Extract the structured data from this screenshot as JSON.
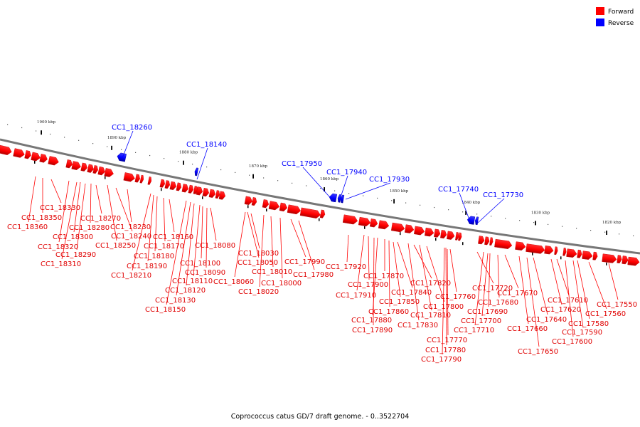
{
  "legend": {
    "forward_label": "Forward",
    "reverse_label": "Reverse",
    "forward_color": "#ff0000",
    "reverse_color": "#0000ff"
  },
  "caption": "Coprococcus catus GD/7 draft genome. - 0..3522704",
  "colors": {
    "backbone": "#808080",
    "forward": "#ff0000",
    "reverse": "#0000ff",
    "tick": "#000000"
  },
  "ticks": [
    "1900 kbp",
    "1890 kbp",
    "1880 kbp",
    "1870 kbp",
    "1860 kbp",
    "1850 kbp",
    "1840 kbp",
    "1830 kbp",
    "1820 kbp"
  ],
  "reverse_genes": [
    "CC1_18260",
    "CC1_18140",
    "CC1_17950",
    "CC1_17940",
    "CC1_17930",
    "CC1_17740",
    "CC1_17730"
  ],
  "forward_genes": [
    "CC1_18360",
    "CC1_18350",
    "CC1_18330",
    "CC1_18320",
    "CC1_18310",
    "CC1_18300",
    "CC1_18290",
    "CC1_18280",
    "CC1_18270",
    "CC1_18250",
    "CC1_18240",
    "CC1_18230",
    "CC1_18210",
    "CC1_18190",
    "CC1_18180",
    "CC1_18170",
    "CC1_18160",
    "CC1_18150",
    "CC1_18130",
    "CC1_18120",
    "CC1_18110",
    "CC1_18100",
    "CC1_18090",
    "CC1_18080",
    "CC1_18060",
    "CC1_18050",
    "CC1_18030",
    "CC1_18020",
    "CC1_18010",
    "CC1_18000",
    "CC1_17990",
    "CC1_17980",
    "CC1_17920",
    "CC1_17910",
    "CC1_17900",
    "CC1_17890",
    "CC1_17880",
    "CC1_17870",
    "CC1_17860",
    "CC1_17850",
    "CC1_17840",
    "CC1_17830",
    "CC1_17820",
    "CC1_17810",
    "CC1_17800",
    "CC1_17790",
    "CC1_17780",
    "CC1_17770",
    "CC1_17760",
    "CC1_17720",
    "CC1_17710",
    "CC1_17700",
    "CC1_17690",
    "CC1_17680",
    "CC1_17670",
    "CC1_17660",
    "CC1_17650",
    "CC1_17640",
    "CC1_17620",
    "CC1_17610",
    "CC1_17600",
    "CC1_17590",
    "CC1_17580",
    "CC1_17560",
    "CC1_17550"
  ]
}
